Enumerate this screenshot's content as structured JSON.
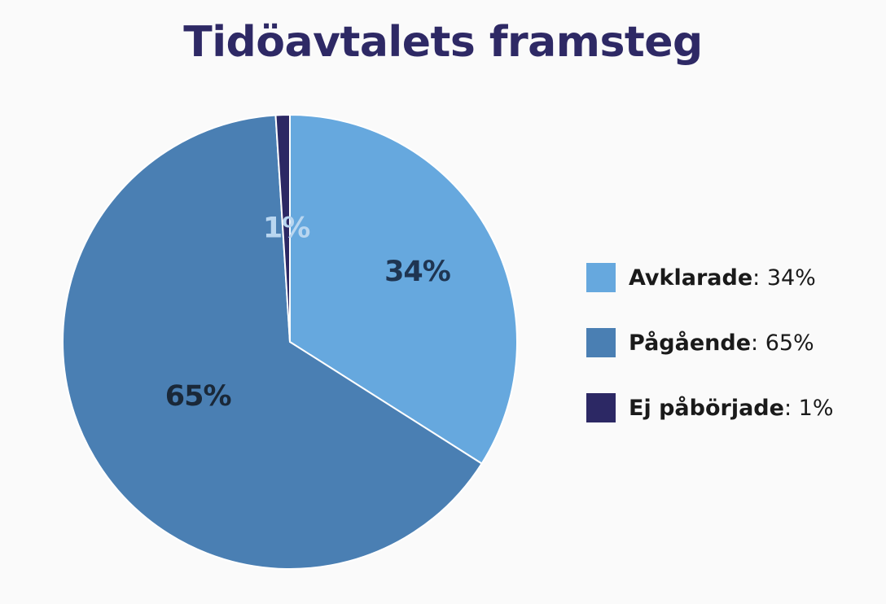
{
  "chart_data": {
    "type": "pie",
    "title": "Tidöavtalets framsteg",
    "slices": [
      {
        "name": "Avklarade",
        "value": 34,
        "label": "34%",
        "legend_value": "34%"
      },
      {
        "name": "Pågående",
        "value": 65,
        "label": "65%",
        "legend_value": "65%"
      },
      {
        "name": "Ej påbörjade",
        "value": 1,
        "label": "1%",
        "legend_value": "1%"
      }
    ],
    "legend_position": "right"
  },
  "colors": {
    "title": "#2e2965",
    "slices": [
      "#66a8de",
      "#4a7fb3",
      "#2c2864"
    ],
    "labels": [
      "#1f3552",
      "#1a2838",
      "#b9d6f0"
    ],
    "separator": "#ffffff"
  }
}
